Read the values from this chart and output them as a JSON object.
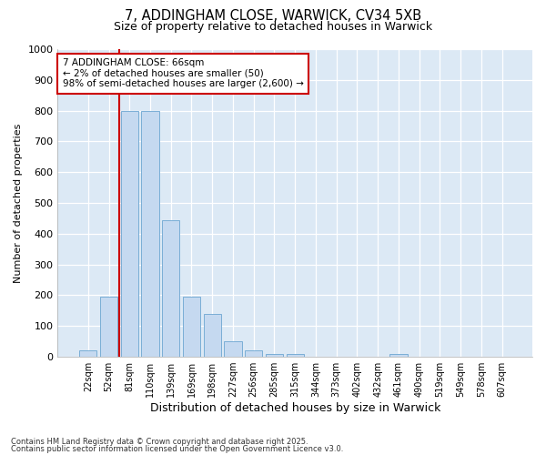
{
  "title_line1": "7, ADDINGHAM CLOSE, WARWICK, CV34 5XB",
  "title_line2": "Size of property relative to detached houses in Warwick",
  "xlabel": "Distribution of detached houses by size in Warwick",
  "ylabel": "Number of detached properties",
  "categories": [
    "22sqm",
    "52sqm",
    "81sqm",
    "110sqm",
    "139sqm",
    "169sqm",
    "198sqm",
    "227sqm",
    "256sqm",
    "285sqm",
    "315sqm",
    "344sqm",
    "373sqm",
    "402sqm",
    "432sqm",
    "461sqm",
    "490sqm",
    "519sqm",
    "549sqm",
    "578sqm",
    "607sqm"
  ],
  "values": [
    20,
    195,
    800,
    800,
    445,
    195,
    140,
    50,
    20,
    10,
    10,
    0,
    0,
    0,
    0,
    10,
    0,
    0,
    0,
    0,
    0
  ],
  "bar_color": "#c5d9f0",
  "bar_edge_color": "#7aaed6",
  "vline_x": 1.5,
  "vline_color": "#cc0000",
  "annotation_text": "7 ADDINGHAM CLOSE: 66sqm\n← 2% of detached houses are smaller (50)\n98% of semi-detached houses are larger (2,600) →",
  "annotation_box_facecolor": "#ffffff",
  "annotation_box_edgecolor": "#cc0000",
  "ylim": [
    0,
    1000
  ],
  "yticks": [
    0,
    100,
    200,
    300,
    400,
    500,
    600,
    700,
    800,
    900,
    1000
  ],
  "fig_facecolor": "#ffffff",
  "ax_facecolor": "#dce9f5",
  "grid_color": "#ffffff",
  "footer_line1": "Contains HM Land Registry data © Crown copyright and database right 2025.",
  "footer_line2": "Contains public sector information licensed under the Open Government Licence v3.0."
}
